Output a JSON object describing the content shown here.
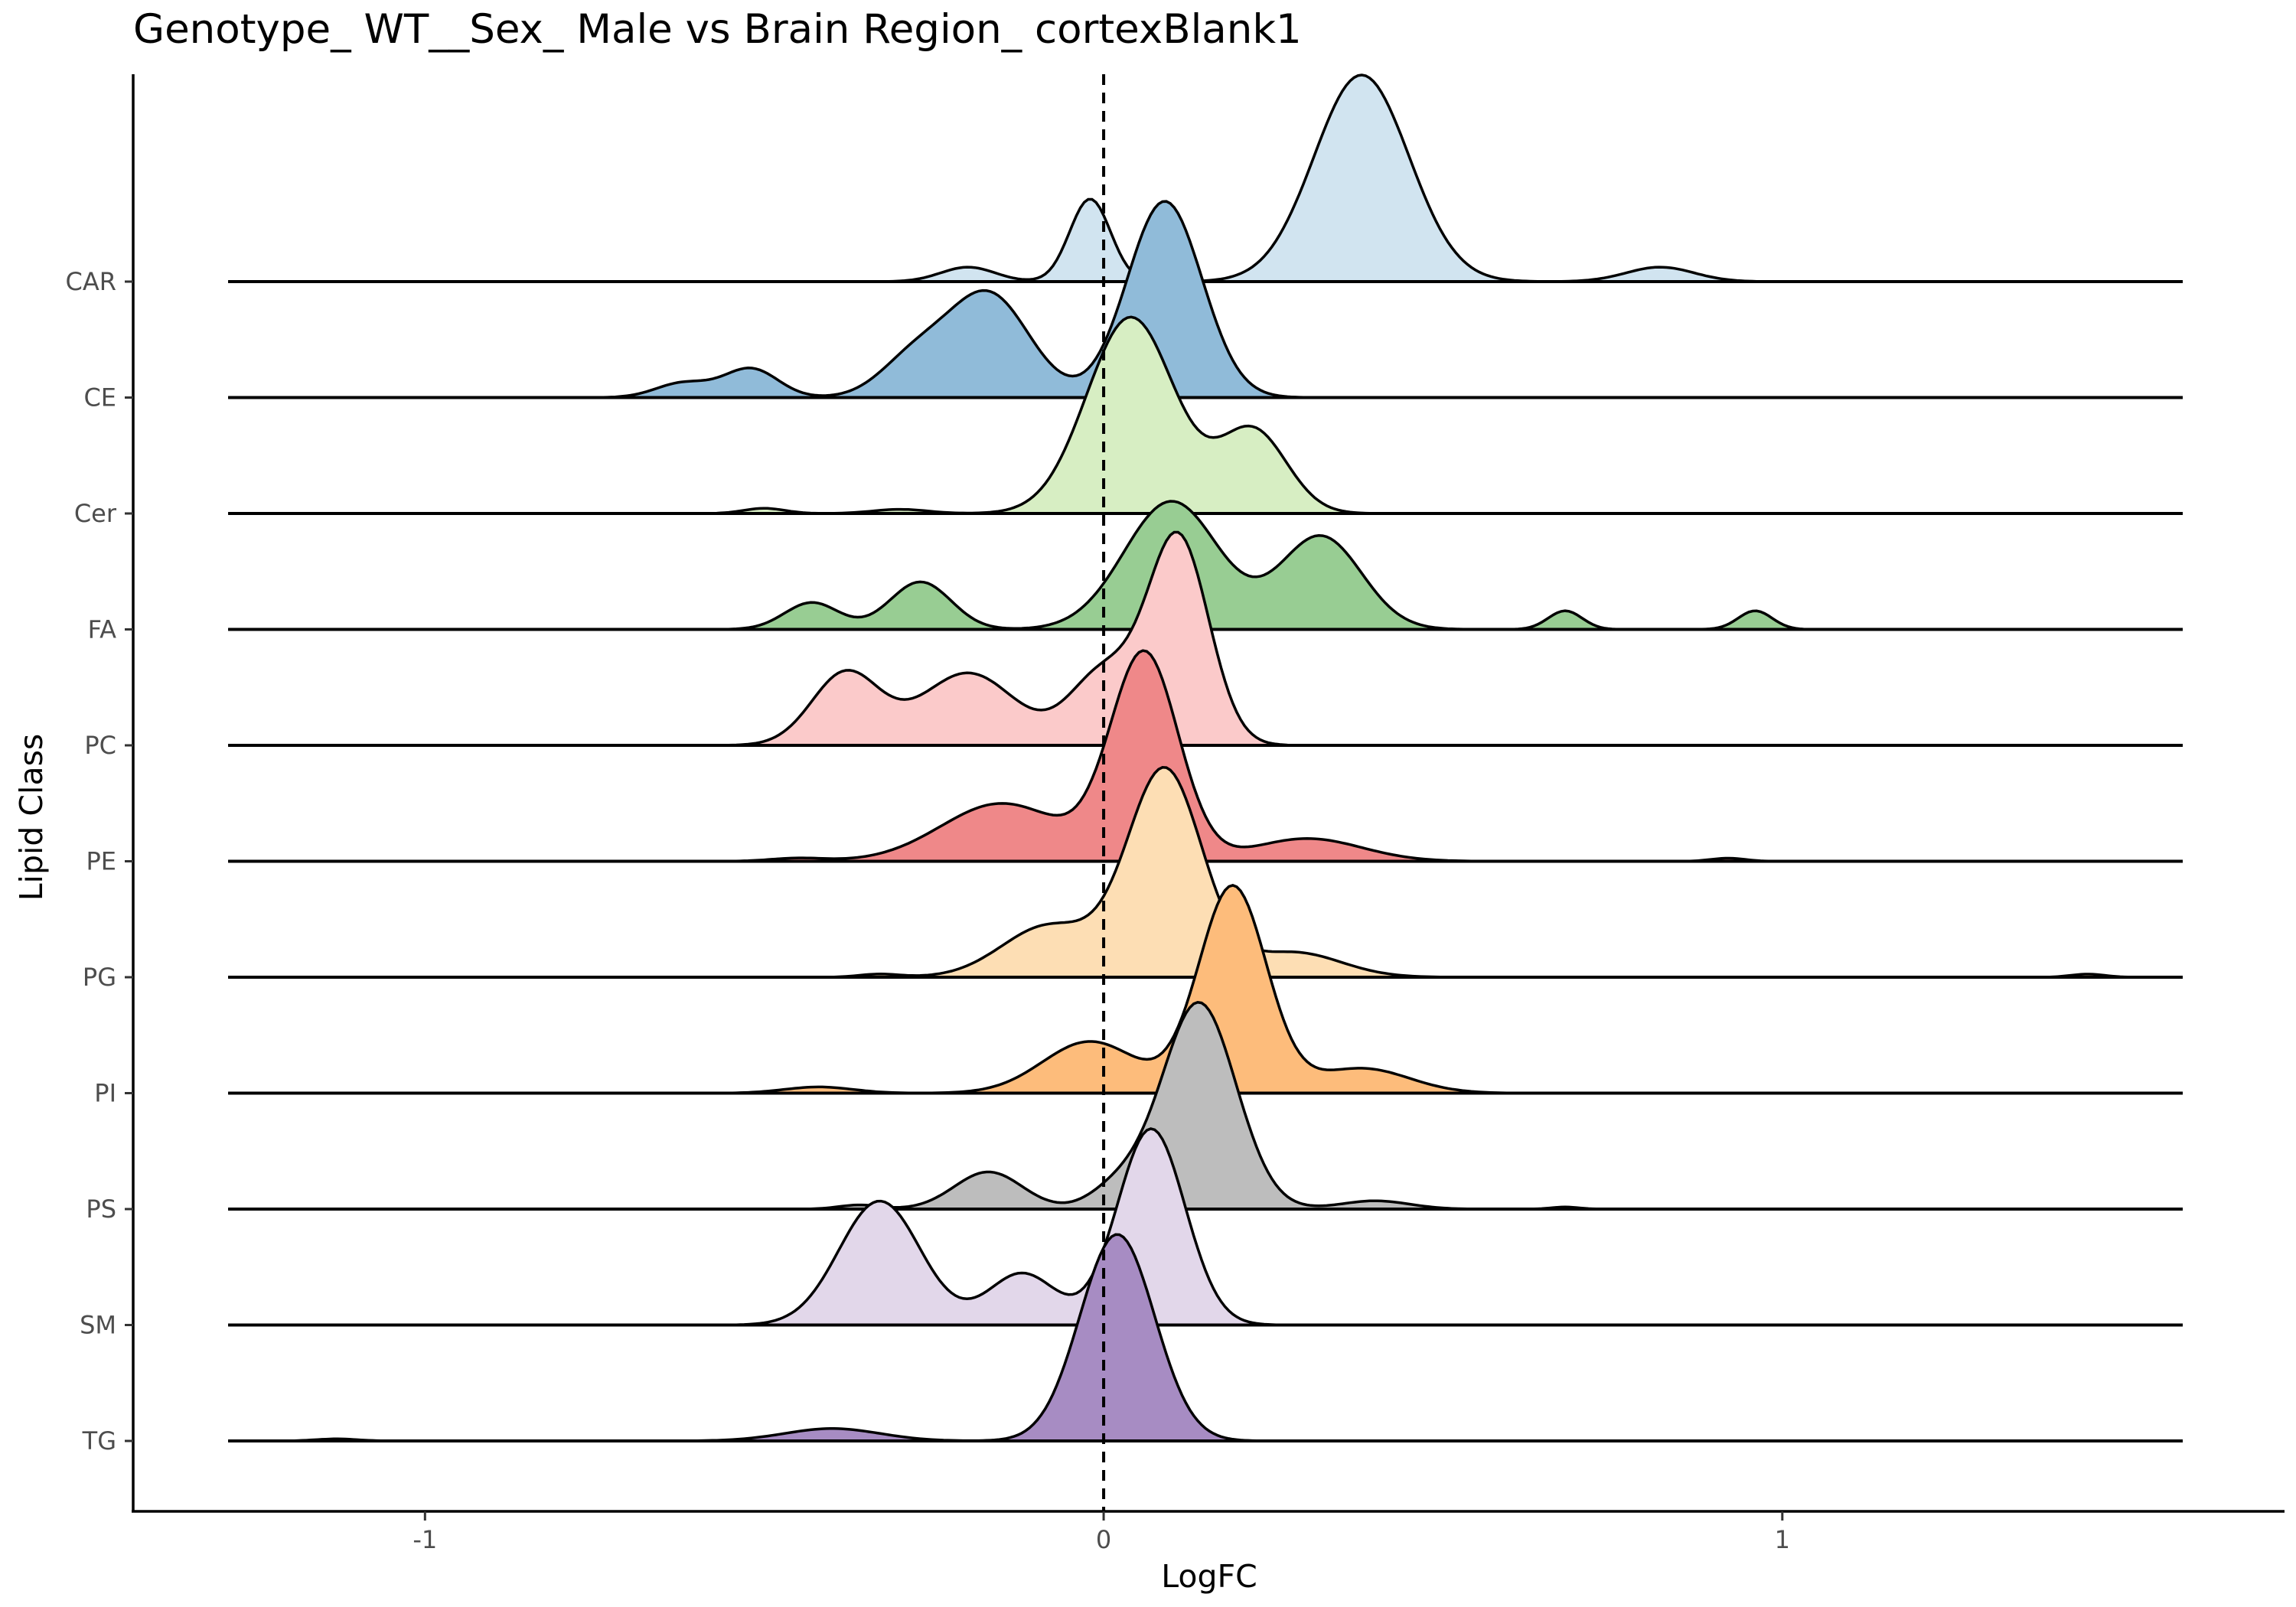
{
  "chart_data": {
    "type": "ridgeline",
    "title": "Genotype_ WT__Sex_ Male vs Brain Region_ cortexBlank1",
    "xlabel": "LogFC",
    "ylabel": "Lipid Class",
    "xlim": [
      -1.43,
      1.74
    ],
    "x_ticks": [
      -1,
      0,
      1
    ],
    "x_tick_labels": [
      "-1",
      "0",
      "1"
    ],
    "reference_line": {
      "x": 0,
      "style": "dashed"
    },
    "grid": false,
    "legend": "none",
    "series": [
      {
        "name": "CAR",
        "color": "#d1e4f0",
        "range": [
          -1.29,
          1.59
        ],
        "peaks": [
          [
            -0.2,
            0.04,
            0.07
          ],
          [
            0.38,
            0.07,
            1.0
          ],
          [
            0.82,
            0.05,
            0.07
          ],
          [
            -0.02,
            0.03,
            0.4
          ]
        ]
      },
      {
        "name": "CE",
        "color": "#90bbd9",
        "range": [
          -1.29,
          1.59
        ],
        "peaks": [
          [
            -0.52,
            0.04,
            0.14
          ],
          [
            -0.28,
            0.05,
            0.18
          ],
          [
            -0.17,
            0.06,
            0.5
          ],
          [
            0.09,
            0.055,
            0.95
          ],
          [
            -0.62,
            0.04,
            0.07
          ]
        ]
      },
      {
        "name": "Cer",
        "color": "#d7eec3",
        "range": [
          -1.29,
          1.59
        ],
        "peaks": [
          [
            0.04,
            0.065,
            0.95
          ],
          [
            0.22,
            0.05,
            0.4
          ],
          [
            -0.3,
            0.04,
            0.02
          ],
          [
            -0.5,
            0.03,
            0.025
          ]
        ]
      },
      {
        "name": "FA",
        "color": "#98cd93",
        "range": [
          -1.29,
          1.59
        ],
        "peaks": [
          [
            -0.43,
            0.04,
            0.13
          ],
          [
            -0.27,
            0.045,
            0.23
          ],
          [
            0.1,
            0.07,
            0.62
          ],
          [
            0.32,
            0.06,
            0.45
          ],
          [
            0.68,
            0.025,
            0.09
          ],
          [
            0.96,
            0.025,
            0.09
          ]
        ]
      },
      {
        "name": "PC",
        "color": "#fbcaca",
        "range": [
          -1.29,
          1.59
        ],
        "peaks": [
          [
            -0.38,
            0.05,
            0.35
          ],
          [
            -0.2,
            0.07,
            0.35
          ],
          [
            0.0,
            0.05,
            0.35
          ],
          [
            0.11,
            0.045,
            1.0
          ]
        ]
      },
      {
        "name": "PE",
        "color": "#ef8889",
        "range": [
          -1.29,
          1.59
        ],
        "peaks": [
          [
            0.06,
            0.05,
            1.0
          ],
          [
            -0.15,
            0.09,
            0.28
          ],
          [
            0.3,
            0.08,
            0.11
          ],
          [
            -0.45,
            0.04,
            0.015
          ],
          [
            0.92,
            0.025,
            0.015
          ]
        ]
      },
      {
        "name": "PG",
        "color": "#fddeb4",
        "range": [
          -1.29,
          1.59
        ],
        "peaks": [
          [
            0.09,
            0.055,
            1.0
          ],
          [
            -0.08,
            0.07,
            0.25
          ],
          [
            0.28,
            0.07,
            0.12
          ],
          [
            -0.33,
            0.03,
            0.015
          ],
          [
            1.45,
            0.025,
            0.015
          ]
        ]
      },
      {
        "name": "PI",
        "color": "#fdbc7b",
        "range": [
          -1.29,
          1.59
        ],
        "peaks": [
          [
            0.19,
            0.05,
            1.0
          ],
          [
            -0.02,
            0.07,
            0.25
          ],
          [
            0.38,
            0.07,
            0.12
          ],
          [
            -0.42,
            0.05,
            0.03
          ]
        ]
      },
      {
        "name": "PS",
        "color": "#bdbdbd",
        "range": [
          -1.29,
          1.59
        ],
        "peaks": [
          [
            0.14,
            0.055,
            1.0
          ],
          [
            -0.17,
            0.05,
            0.18
          ],
          [
            0.02,
            0.04,
            0.1
          ],
          [
            0.4,
            0.05,
            0.04
          ],
          [
            -0.36,
            0.03,
            0.02
          ],
          [
            0.68,
            0.02,
            0.01
          ]
        ]
      },
      {
        "name": "SM",
        "color": "#e2d7ea",
        "range": [
          -1.29,
          1.59
        ],
        "peaks": [
          [
            -0.33,
            0.06,
            0.6
          ],
          [
            -0.12,
            0.05,
            0.25
          ],
          [
            0.07,
            0.05,
            0.95
          ]
        ]
      },
      {
        "name": "TG",
        "color": "#a78cc3",
        "range": [
          -1.29,
          1.59
        ],
        "peaks": [
          [
            0.02,
            0.055,
            1.0
          ],
          [
            -0.4,
            0.07,
            0.06
          ],
          [
            -1.13,
            0.03,
            0.01
          ]
        ]
      }
    ]
  }
}
